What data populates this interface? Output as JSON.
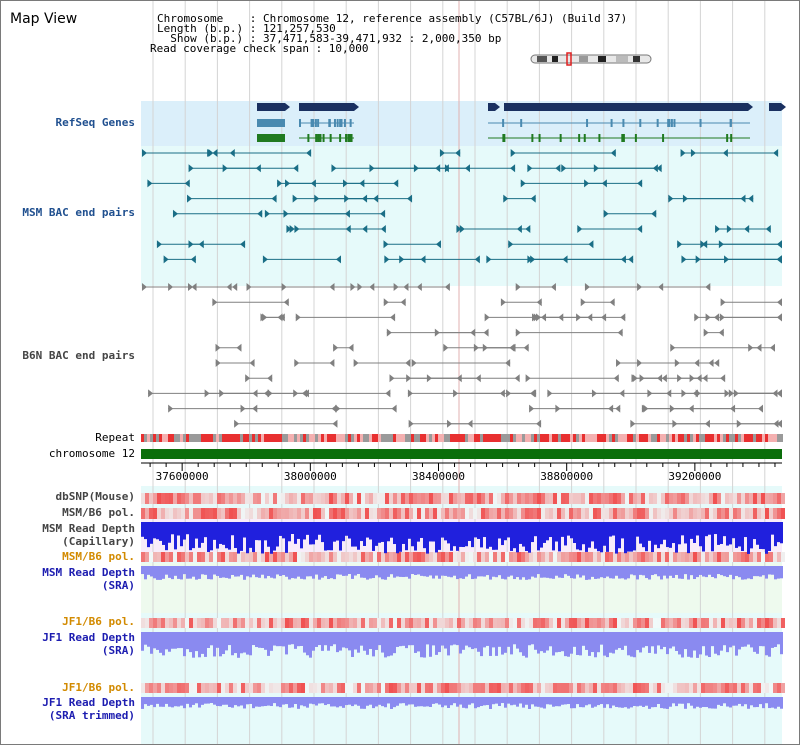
{
  "header": {
    "title": "Map View",
    "chromosome_line": "Chromosome    : Chromosome 12, reference assembly (C57BL/6J) (Build 37)",
    "length_line": "Length (b.p.) : 121,257,530",
    "show_line": "  Show (b.p.) : 37,471,583-39,471,932 : 2,000,350 bp",
    "coverage_line": "Read coverage check span : 10,000"
  },
  "tracks": {
    "refseq": "RefSeq Genes",
    "msm_bac": "MSM BAC end pairs",
    "b6n_bac": "B6N BAC end pairs",
    "repeat": "Repeat",
    "chromosome": "chromosome 12",
    "dbsnp": "dbSNP(Mouse)",
    "msm_b6_pol_1": "MSM/B6 pol.",
    "msm_read_depth_cap_1": "MSM Read Depth",
    "msm_read_depth_cap_2": "(Capillary)",
    "msm_b6_pol_2": "MSM/B6 pol.",
    "msm_read_depth_sra_1": "MSM Read Depth",
    "msm_read_depth_sra_2": "(SRA)",
    "jf1_b6_pol_1": "JF1/B6 pol.",
    "jf1_read_depth_sra_1": "JF1 Read Depth",
    "jf1_read_depth_sra_2": "(SRA)",
    "jf1_b6_pol_2": "JF1/B6 pol.",
    "jf1_read_depth_trim_1": "JF1 Read Depth",
    "jf1_read_depth_trim_2": "(SRA trimmed)"
  },
  "axis": {
    "ticks": [
      "37600000",
      "38000000",
      "38400000",
      "38800000",
      "39200000"
    ],
    "tick_values": [
      37600000,
      38000000,
      38400000,
      38800000,
      39200000
    ],
    "start_bp": 37471583,
    "end_bp": 39471932
  },
  "colors": {
    "refseq_bg": "#dbeffa",
    "track_bg": "#e6fafa",
    "gene_navy": "#1a3060",
    "gene_steel": "#4a8ab0",
    "gene_green": "#207a20",
    "msm_bac": "#1a6e86",
    "b6n_bac": "#808080",
    "chromosome": "#0b6e0b",
    "depth_blue": "#2020dd",
    "depth_light": "#8a8af0",
    "pol_red": "#f03030"
  }
}
